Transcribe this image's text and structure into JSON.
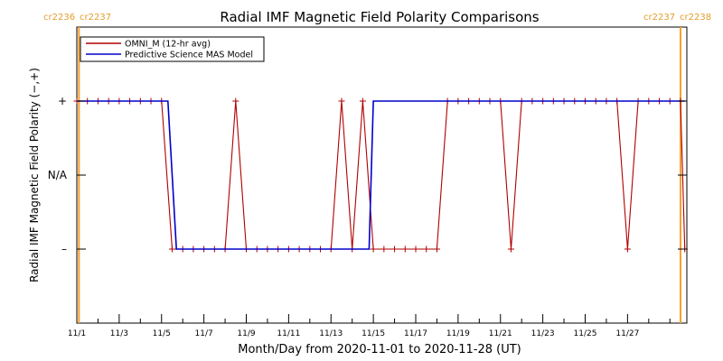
{
  "chart_data": {
    "type": "line",
    "title": "Radial IMF Magnetic Field Polarity Comparisons",
    "xlabel": "Month/Day from 2020-11-01 to 2020-11-28 (UT)",
    "ylabel": "Radial IMF Magnetic Field Polarity (−,+)",
    "x_ticks": [
      "11/1",
      "11/3",
      "11/5",
      "11/7",
      "11/9",
      "11/11",
      "11/13",
      "11/15",
      "11/17",
      "11/19",
      "11/21",
      "11/23",
      "11/25",
      "11/27"
    ],
    "x_tick_days": [
      1,
      3,
      5,
      7,
      9,
      11,
      13,
      15,
      17,
      19,
      21,
      23,
      25,
      27
    ],
    "xlim": [
      1,
      29.8
    ],
    "y_ticks": [
      "+",
      "N/A",
      "–"
    ],
    "y_tick_values": [
      1,
      0,
      -1
    ],
    "ylim": [
      -2,
      2
    ],
    "grid": false,
    "legend_position": "top-left",
    "carrington_markers": [
      {
        "day": 1.1,
        "left_label": "cr2236",
        "right_label": "cr2237",
        "color": "#f5a030"
      },
      {
        "day": 29.5,
        "left_label": "cr2237",
        "right_label": "cr2238",
        "color": "#f5a030"
      }
    ],
    "series": [
      {
        "name": "OMNI_M (12-hr avg)",
        "color": "#b00000",
        "marker": "plus",
        "x": [
          1.0,
          1.5,
          2.0,
          2.5,
          3.0,
          3.5,
          4.0,
          4.5,
          5.0,
          5.5,
          6.0,
          6.5,
          7.0,
          7.5,
          8.0,
          8.5,
          9.0,
          9.5,
          10.0,
          10.5,
          11.0,
          11.5,
          12.0,
          12.5,
          13.0,
          13.5,
          14.0,
          14.5,
          15.0,
          15.5,
          16.0,
          16.5,
          17.0,
          17.5,
          18.0,
          18.5,
          19.0,
          19.5,
          20.0,
          20.5,
          21.0,
          21.5,
          22.0,
          22.5,
          23.0,
          23.5,
          24.0,
          24.5,
          25.0,
          25.5,
          26.0,
          26.5,
          27.0,
          27.5,
          28.0,
          28.5,
          29.0,
          29.5,
          29.7
        ],
        "y": [
          1,
          1,
          1,
          1,
          1,
          1,
          1,
          1,
          1,
          -1,
          -1,
          -1,
          -1,
          -1,
          -1,
          1,
          -1,
          -1,
          -1,
          -1,
          -1,
          -1,
          -1,
          -1,
          -1,
          1,
          -1,
          1,
          -1,
          -1,
          -1,
          -1,
          -1,
          -1,
          -1,
          1,
          1,
          1,
          1,
          1,
          1,
          -1,
          1,
          1,
          1,
          1,
          1,
          1,
          1,
          1,
          1,
          1,
          -1,
          1,
          1,
          1,
          1,
          1,
          -1
        ]
      },
      {
        "name": "Predictive Science MAS Model",
        "color": "#0000cc",
        "marker": "none",
        "x": [
          1.0,
          5.3,
          5.7,
          14.8,
          15.0,
          29.7
        ],
        "y": [
          1,
          1,
          -1,
          -1,
          1,
          1
        ]
      }
    ]
  }
}
